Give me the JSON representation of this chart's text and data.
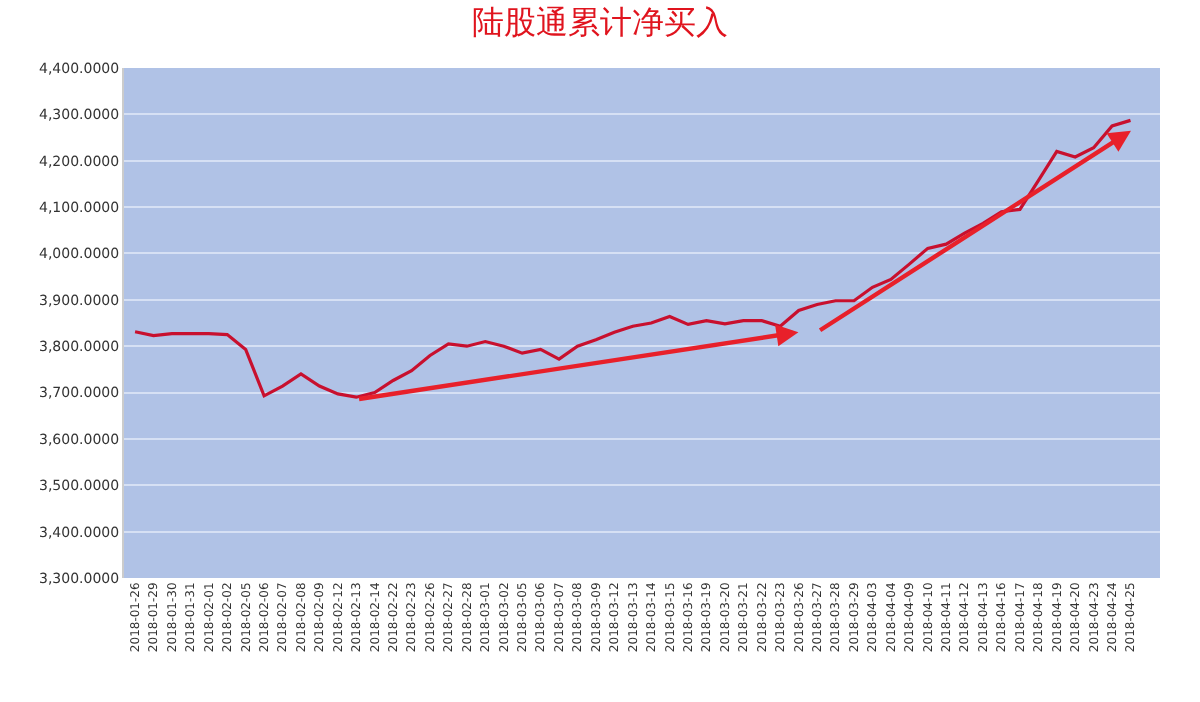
{
  "chart_data": {
    "type": "line",
    "title": "陆股通累计净买入",
    "categories": [
      "2018-01-26",
      "2018-01-29",
      "2018-01-30",
      "2018-01-31",
      "2018-02-01",
      "2018-02-02",
      "2018-02-05",
      "2018-02-06",
      "2018-02-07",
      "2018-02-08",
      "2018-02-09",
      "2018-02-12",
      "2018-02-13",
      "2018-02-14",
      "2018-02-22",
      "2018-02-23",
      "2018-02-26",
      "2018-02-27",
      "2018-02-28",
      "2018-03-01",
      "2018-03-02",
      "2018-03-05",
      "2018-03-06",
      "2018-03-07",
      "2018-03-08",
      "2018-03-09",
      "2018-03-12",
      "2018-03-13",
      "2018-03-14",
      "2018-03-15",
      "2018-03-16",
      "2018-03-19",
      "2018-03-20",
      "2018-03-21",
      "2018-03-22",
      "2018-03-23",
      "2018-03-26",
      "2018-03-27",
      "2018-03-28",
      "2018-03-29",
      "2018-04-03",
      "2018-04-04",
      "2018-04-09",
      "2018-04-10",
      "2018-04-11",
      "2018-04-12",
      "2018-04-13",
      "2018-04-16",
      "2018-04-17",
      "2018-04-18",
      "2018-04-19",
      "2018-04-20",
      "2018-04-23",
      "2018-04-24",
      "2018-04-25",
      null
    ],
    "series": [
      {
        "color": "#c8102e",
        "values": [
          3831,
          3823,
          3827,
          3827,
          3827,
          3825,
          3793,
          3693,
          3714,
          3740,
          3714,
          3697,
          3690,
          3700,
          3726,
          3747,
          3780,
          3805,
          3800,
          3810,
          3800,
          3785,
          3793,
          3772,
          3800,
          3814,
          3830,
          3843,
          3850,
          3864,
          3847,
          3855,
          3848,
          3855,
          3855,
          3843,
          3877,
          3890,
          3898,
          3898,
          3927,
          3944,
          3977,
          4011,
          4020,
          4044,
          4065,
          4090,
          4095,
          4157,
          4220,
          4208,
          4228,
          4275,
          4287,
          null
        ]
      }
    ],
    "ylim": [
      3300,
      4400
    ],
    "yticks": [
      {
        "value": 3300,
        "label": "3,300.0000"
      },
      {
        "value": 3400,
        "label": "3,400.0000"
      },
      {
        "value": 3500,
        "label": "3,500.0000"
      },
      {
        "value": 3600,
        "label": "3,600.0000"
      },
      {
        "value": 3700,
        "label": "3,700.0000"
      },
      {
        "value": 3800,
        "label": "3,800.0000"
      },
      {
        "value": 3900,
        "label": "3,900.0000"
      },
      {
        "value": 4000,
        "label": "4,000.0000"
      },
      {
        "value": 4100,
        "label": "4,100.0000"
      },
      {
        "value": 4200,
        "label": "4,200.0000"
      },
      {
        "value": 4300,
        "label": "4,300.0000"
      },
      {
        "value": 4400,
        "label": "4,400.0000"
      }
    ],
    "grid": "y"
  }
}
